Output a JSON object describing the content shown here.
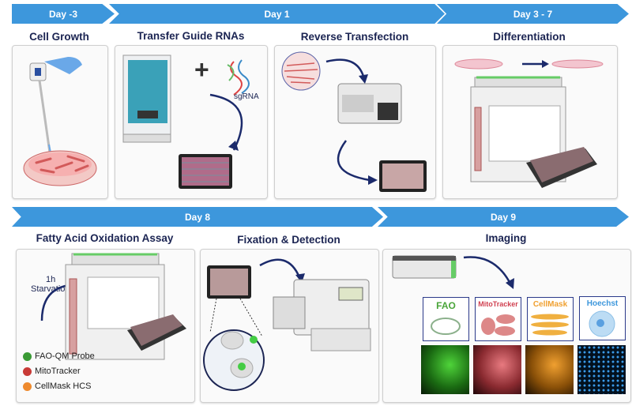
{
  "timeline_row1": [
    {
      "label": "Day -3"
    },
    {
      "label": "Day 1"
    },
    {
      "label": "Day 3 - 7"
    }
  ],
  "timeline_row2": [
    {
      "label": "Day 8"
    },
    {
      "label": "Day 9"
    }
  ],
  "steps": {
    "cell_growth": {
      "title": "Cell Growth"
    },
    "transfer": {
      "title": "Transfer Guide RNAs",
      "sgrna_label": "sgRNA",
      "plus": "+"
    },
    "reverse": {
      "title": "Reverse Transfection"
    },
    "differentiation": {
      "title": "Differentiation"
    },
    "fao_assay": {
      "title": "Fatty Acid Oxidation Assay",
      "starvation_time": "1h",
      "starvation_label": "Starvation",
      "legend": [
        {
          "label": "FAO-QM Probe",
          "color": "#3a9a35"
        },
        {
          "label": "MitoTracker",
          "color": "#c83a36"
        },
        {
          "label": "CellMask HCS",
          "color": "#ee8a2e"
        }
      ]
    },
    "fixation": {
      "title": "Fixation & Detection"
    },
    "imaging": {
      "title": "Imaging",
      "stains": [
        {
          "label": "FAO",
          "color": "#4aa53a"
        },
        {
          "label": "MitoTracker",
          "color": "#d04050"
        },
        {
          "label": "CellMask",
          "color": "#f0a030"
        },
        {
          "label": "Hoechst",
          "color": "#3d97dc"
        }
      ]
    }
  },
  "colors": {
    "banner": "#3d97dc",
    "title": "#1b2452",
    "arrow": "#1b2a6b"
  }
}
